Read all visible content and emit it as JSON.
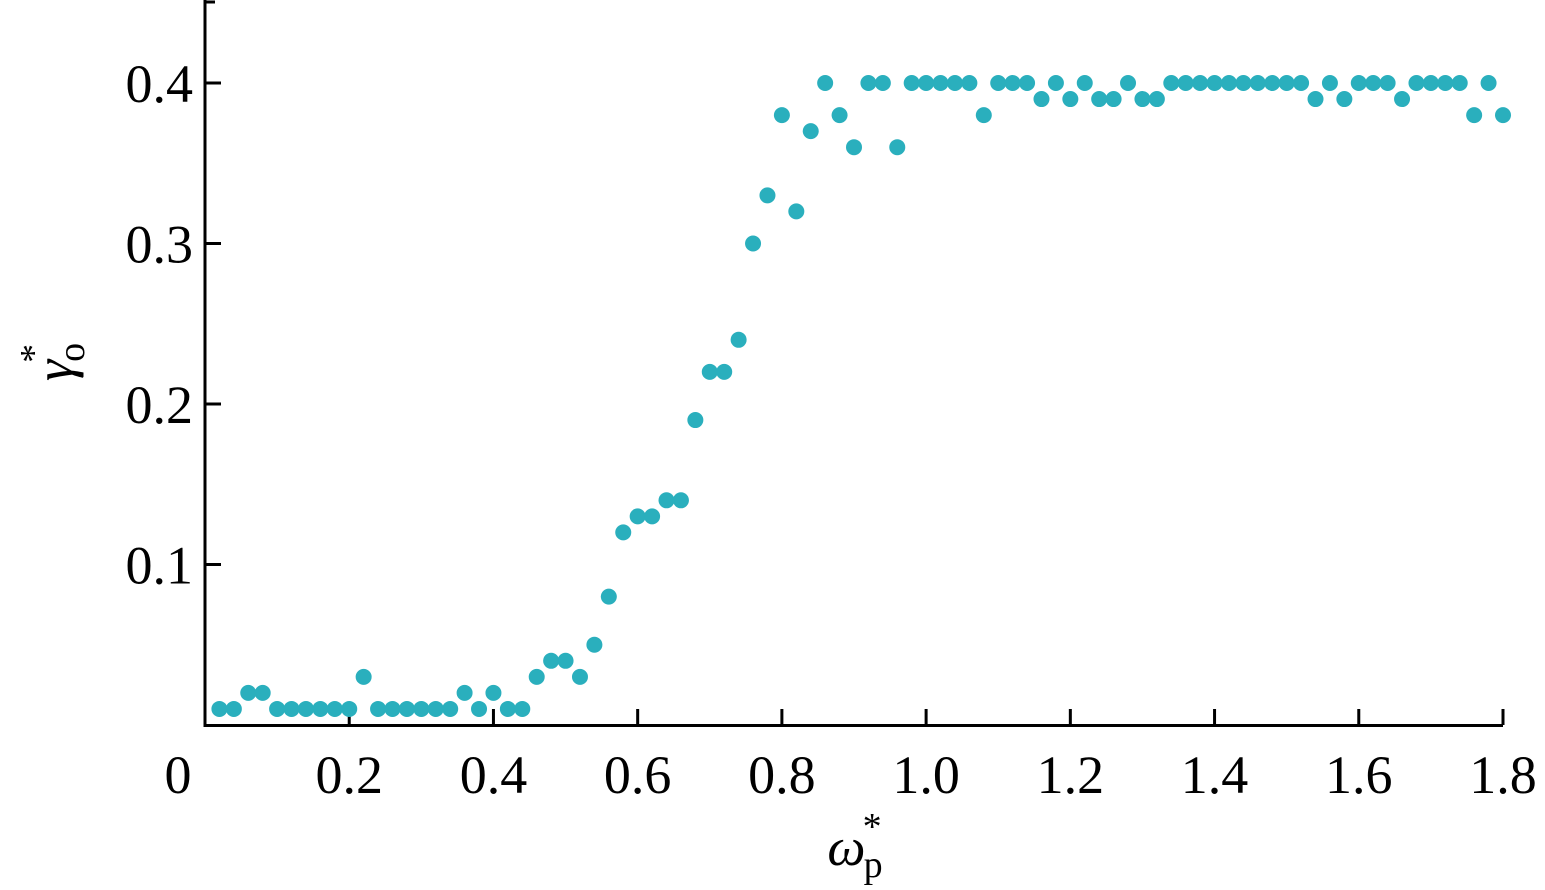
{
  "chart_data": {
    "type": "scatter",
    "xlabel": {
      "base": "ω",
      "sub": "p",
      "sup": "*"
    },
    "ylabel": {
      "base": "γ",
      "sub": "o",
      "sup": "*"
    },
    "xlim": [
      0,
      1.8
    ],
    "ylim": [
      0,
      0.45
    ],
    "x_ticks": [
      {
        "value": 0,
        "label": "0"
      },
      {
        "value": 0.2,
        "label": "0.2"
      },
      {
        "value": 0.4,
        "label": "0.4"
      },
      {
        "value": 0.6,
        "label": "0.6"
      },
      {
        "value": 0.8,
        "label": "0.8"
      },
      {
        "value": 1.0,
        "label": "1.0"
      },
      {
        "value": 1.2,
        "label": "1.2"
      },
      {
        "value": 1.4,
        "label": "1.4"
      },
      {
        "value": 1.6,
        "label": "1.6"
      },
      {
        "value": 1.8,
        "label": "1.8"
      }
    ],
    "y_ticks": [
      {
        "value": 0.1,
        "label": "0.1"
      },
      {
        "value": 0.2,
        "label": "0.2"
      },
      {
        "value": 0.3,
        "label": "0.3"
      },
      {
        "value": 0.4,
        "label": "0.4"
      }
    ],
    "grid": false,
    "marker_color": "#2aafbd",
    "points": [
      [
        0.02,
        0.01
      ],
      [
        0.04,
        0.01
      ],
      [
        0.06,
        0.02
      ],
      [
        0.08,
        0.02
      ],
      [
        0.1,
        0.01
      ],
      [
        0.12,
        0.01
      ],
      [
        0.14,
        0.01
      ],
      [
        0.16,
        0.01
      ],
      [
        0.18,
        0.01
      ],
      [
        0.2,
        0.01
      ],
      [
        0.22,
        0.03
      ],
      [
        0.24,
        0.01
      ],
      [
        0.26,
        0.01
      ],
      [
        0.28,
        0.01
      ],
      [
        0.3,
        0.01
      ],
      [
        0.32,
        0.01
      ],
      [
        0.34,
        0.01
      ],
      [
        0.36,
        0.02
      ],
      [
        0.38,
        0.01
      ],
      [
        0.4,
        0.02
      ],
      [
        0.42,
        0.01
      ],
      [
        0.44,
        0.01
      ],
      [
        0.46,
        0.03
      ],
      [
        0.48,
        0.04
      ],
      [
        0.5,
        0.04
      ],
      [
        0.52,
        0.03
      ],
      [
        0.54,
        0.05
      ],
      [
        0.56,
        0.08
      ],
      [
        0.58,
        0.12
      ],
      [
        0.6,
        0.13
      ],
      [
        0.62,
        0.13
      ],
      [
        0.64,
        0.14
      ],
      [
        0.66,
        0.14
      ],
      [
        0.68,
        0.19
      ],
      [
        0.7,
        0.22
      ],
      [
        0.72,
        0.22
      ],
      [
        0.74,
        0.24
      ],
      [
        0.76,
        0.3
      ],
      [
        0.78,
        0.33
      ],
      [
        0.8,
        0.38
      ],
      [
        0.82,
        0.32
      ],
      [
        0.84,
        0.37
      ],
      [
        0.86,
        0.4
      ],
      [
        0.88,
        0.38
      ],
      [
        0.9,
        0.36
      ],
      [
        0.92,
        0.4
      ],
      [
        0.94,
        0.4
      ],
      [
        0.96,
        0.36
      ],
      [
        0.98,
        0.4
      ],
      [
        1.0,
        0.4
      ],
      [
        1.02,
        0.4
      ],
      [
        1.04,
        0.4
      ],
      [
        1.06,
        0.4
      ],
      [
        1.08,
        0.38
      ],
      [
        1.1,
        0.4
      ],
      [
        1.12,
        0.4
      ],
      [
        1.14,
        0.4
      ],
      [
        1.16,
        0.39
      ],
      [
        1.18,
        0.4
      ],
      [
        1.2,
        0.39
      ],
      [
        1.22,
        0.4
      ],
      [
        1.24,
        0.39
      ],
      [
        1.26,
        0.39
      ],
      [
        1.28,
        0.4
      ],
      [
        1.3,
        0.39
      ],
      [
        1.32,
        0.39
      ],
      [
        1.34,
        0.4
      ],
      [
        1.36,
        0.4
      ],
      [
        1.38,
        0.4
      ],
      [
        1.4,
        0.4
      ],
      [
        1.42,
        0.4
      ],
      [
        1.44,
        0.4
      ],
      [
        1.46,
        0.4
      ],
      [
        1.48,
        0.4
      ],
      [
        1.5,
        0.4
      ],
      [
        1.52,
        0.4
      ],
      [
        1.54,
        0.39
      ],
      [
        1.56,
        0.4
      ],
      [
        1.58,
        0.39
      ],
      [
        1.6,
        0.4
      ],
      [
        1.62,
        0.4
      ],
      [
        1.64,
        0.4
      ],
      [
        1.66,
        0.39
      ],
      [
        1.68,
        0.4
      ],
      [
        1.7,
        0.4
      ],
      [
        1.72,
        0.4
      ],
      [
        1.74,
        0.4
      ],
      [
        1.76,
        0.38
      ],
      [
        1.78,
        0.4
      ],
      [
        1.8,
        0.38
      ]
    ]
  }
}
